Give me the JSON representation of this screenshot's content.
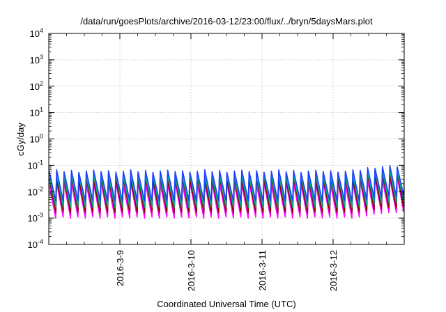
{
  "chart_data": {
    "type": "line",
    "title": "/data/run/goesPlots/archive/2016-03-12/23:00/flux/../bryn/5daysMars.plot",
    "xlabel": "Coordinated Universal Time (UTC)",
    "ylabel": "cGy/day",
    "yscale": "log",
    "ylim": [
      0.0001,
      10000
    ],
    "xlim": [
      "2016-03-08 00:00",
      "2016-03-13 00:00"
    ],
    "grid": true,
    "x_ticks": [
      "2016-3-9",
      "2016-3-10",
      "2016-3-11",
      "2016-3-12"
    ],
    "y_ticks": [
      {
        "base": "10",
        "exp": "-4"
      },
      {
        "base": "10",
        "exp": "-3"
      },
      {
        "base": "10",
        "exp": "-2"
      },
      {
        "base": "10",
        "exp": "-1"
      },
      {
        "base": "10",
        "exp": "0"
      },
      {
        "base": "10",
        "exp": "1"
      },
      {
        "base": "10",
        "exp": "2"
      },
      {
        "base": "10",
        "exp": "3"
      },
      {
        "base": "10",
        "exp": "4"
      }
    ],
    "series_colors": [
      "#ff00ff",
      "#8b0000",
      "#00a060",
      "#00b0b0",
      "#1f3fff"
    ],
    "series": [
      {
        "color": "#ff00ff",
        "sawtooth": {
          "period_hours": 2.5,
          "min": 0.001,
          "peak": 0.02
        },
        "values": [
          0.001,
          0.0011,
          0.001,
          0.0011,
          0.001,
          0.0011,
          0.001,
          0.0011,
          0.001,
          0.0011,
          0.001,
          0.0011,
          0.001,
          0.0011,
          0.001,
          0.0011,
          0.001,
          0.0011,
          0.001,
          0.0011,
          0.001,
          0.0011,
          0.001,
          0.0011,
          0.001,
          0.0011,
          0.001,
          0.0011,
          0.001,
          0.0011,
          0.001,
          0.0011,
          0.001,
          0.0011,
          0.001,
          0.0011,
          0.001,
          0.0011,
          0.001,
          0.0011,
          0.001,
          0.0011,
          0.0012,
          0.0014,
          0.0015,
          0.0016,
          0.0016,
          0.0017
        ]
      },
      {
        "color": "#8b0000",
        "sawtooth": {
          "period_hours": 2.5,
          "min": 0.0016,
          "peak": 0.03
        },
        "values": [
          0.0016,
          0.0017,
          0.0016,
          0.0017,
          0.0016,
          0.0017,
          0.0016,
          0.0017,
          0.0016,
          0.0017,
          0.0016,
          0.0017,
          0.0016,
          0.0017,
          0.0016,
          0.0017,
          0.0016,
          0.0017,
          0.0016,
          0.0017,
          0.0016,
          0.0017,
          0.0016,
          0.0017,
          0.0016,
          0.0017,
          0.0016,
          0.0017,
          0.0016,
          0.0017,
          0.0016,
          0.0017,
          0.0016,
          0.0017,
          0.0016,
          0.0017,
          0.0016,
          0.0017,
          0.0016,
          0.0017,
          0.0016,
          0.0017,
          0.0019,
          0.0021,
          0.0023,
          0.0024,
          0.0024,
          0.0026
        ]
      },
      {
        "color": "#00a060",
        "sawtooth": {
          "period_hours": 2.5,
          "min": 0.0025,
          "peak": 0.04
        },
        "values": [
          0.0025,
          0.0026,
          0.0025,
          0.0026,
          0.0025,
          0.0026,
          0.0025,
          0.0026,
          0.0025,
          0.0026,
          0.0025,
          0.0026,
          0.0025,
          0.0026,
          0.0025,
          0.0026,
          0.0025,
          0.0026,
          0.0025,
          0.0026,
          0.0025,
          0.0026,
          0.0025,
          0.0026,
          0.0025,
          0.0026,
          0.0025,
          0.0026,
          0.0025,
          0.0026,
          0.0025,
          0.0026,
          0.0025,
          0.0026,
          0.0025,
          0.0026,
          0.0025,
          0.0026,
          0.0025,
          0.0026,
          0.0025,
          0.0026,
          0.0029,
          0.0033,
          0.0036,
          0.0038,
          0.0038,
          0.004
        ]
      },
      {
        "color": "#00b0b0",
        "sawtooth": {
          "period_hours": 2.5,
          "min": 0.0035,
          "peak": 0.05
        },
        "values": [
          0.0035,
          0.0036,
          0.0035,
          0.0036,
          0.0035,
          0.0036,
          0.0035,
          0.0036,
          0.0035,
          0.0036,
          0.0035,
          0.0036,
          0.0035,
          0.0036,
          0.0035,
          0.0036,
          0.0035,
          0.0036,
          0.0035,
          0.0036,
          0.0035,
          0.0036,
          0.0035,
          0.0036,
          0.0035,
          0.0036,
          0.0035,
          0.0036,
          0.0035,
          0.0036,
          0.0035,
          0.0036,
          0.0035,
          0.0036,
          0.0035,
          0.0036,
          0.0035,
          0.0036,
          0.0035,
          0.0036,
          0.0035,
          0.0036,
          0.004,
          0.0045,
          0.005,
          0.0052,
          0.0052,
          0.0055
        ]
      },
      {
        "color": "#1f3fff",
        "sawtooth": {
          "period_hours": 2.5,
          "min": 0.0045,
          "peak": 0.06
        },
        "values": [
          0.0045,
          0.0046,
          0.0045,
          0.0046,
          0.0045,
          0.0046,
          0.0045,
          0.0046,
          0.0045,
          0.0046,
          0.0045,
          0.0046,
          0.0045,
          0.0046,
          0.0045,
          0.0046,
          0.0045,
          0.0046,
          0.0045,
          0.0046,
          0.0045,
          0.0046,
          0.0045,
          0.0046,
          0.0045,
          0.0046,
          0.0045,
          0.0046,
          0.0045,
          0.0046,
          0.0045,
          0.0046,
          0.0045,
          0.0046,
          0.0045,
          0.0046,
          0.0045,
          0.0046,
          0.0045,
          0.0046,
          0.0045,
          0.0046,
          0.0051,
          0.0058,
          0.0064,
          0.0067,
          0.0067,
          0.007
        ]
      }
    ]
  }
}
